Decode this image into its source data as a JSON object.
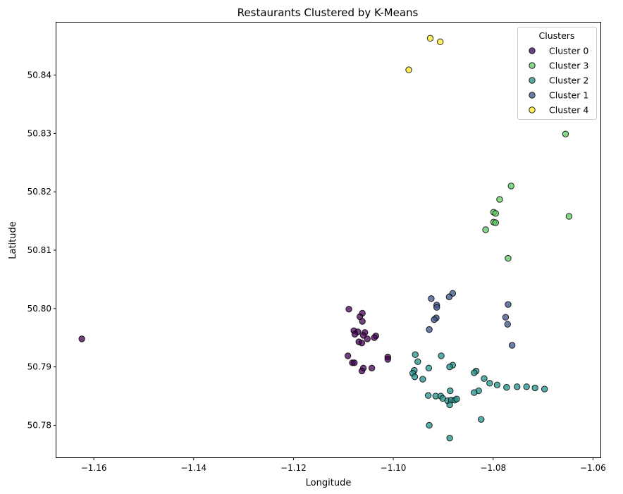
{
  "chart_data": {
    "type": "scatter",
    "title": "Restaurants Clustered by K-Means",
    "xlabel": "Longitude",
    "ylabel": "Latitude",
    "xlim": [
      -1.1675,
      -1.0585
    ],
    "ylim": [
      50.7745,
      50.849
    ],
    "xticks": [
      -1.16,
      -1.14,
      -1.12,
      -1.1,
      -1.08,
      -1.06
    ],
    "xtick_labels": [
      "−1.16",
      "−1.14",
      "−1.12",
      "−1.10",
      "−1.08",
      "−1.06"
    ],
    "yticks": [
      50.78,
      50.79,
      50.8,
      50.81,
      50.82,
      50.83,
      50.84
    ],
    "ytick_labels": [
      "50.78",
      "50.79",
      "50.80",
      "50.81",
      "50.82",
      "50.83",
      "50.84"
    ],
    "grid": false,
    "legend": {
      "title": "Clusters",
      "placement": "top-right"
    },
    "series": [
      {
        "name": "Cluster 0",
        "color": "#440154",
        "points": [
          [
            -1.1624,
            50.7948
          ],
          [
            -1.1089,
            50.7999
          ],
          [
            -1.1062,
            50.7992
          ],
          [
            -1.1067,
            50.7986
          ],
          [
            -1.1062,
            50.7978
          ],
          [
            -1.1079,
            50.7962
          ],
          [
            -1.1071,
            50.796
          ],
          [
            -1.1077,
            50.7956
          ],
          [
            -1.1057,
            50.7959
          ],
          [
            -1.106,
            50.7954
          ],
          [
            -1.1035,
            50.7953
          ],
          [
            -1.1038,
            50.795
          ],
          [
            -1.1052,
            50.7948
          ],
          [
            -1.1069,
            50.7943
          ],
          [
            -1.1063,
            50.7941
          ],
          [
            -1.1091,
            50.7919
          ],
          [
            -1.1011,
            50.7917
          ],
          [
            -1.1011,
            50.7913
          ],
          [
            -1.1082,
            50.7907
          ],
          [
            -1.1078,
            50.7907
          ],
          [
            -1.106,
            50.7898
          ],
          [
            -1.1043,
            50.7898
          ],
          [
            -1.1063,
            50.7893
          ]
        ]
      },
      {
        "name": "Cluster 3",
        "color": "#5ec962",
        "points": [
          [
            -1.0655,
            50.8299
          ],
          [
            -1.0764,
            50.821
          ],
          [
            -1.0787,
            50.8187
          ],
          [
            -1.0799,
            50.8165
          ],
          [
            -1.0795,
            50.8163
          ],
          [
            -1.0799,
            50.8148
          ],
          [
            -1.0795,
            50.8147
          ],
          [
            -1.0815,
            50.8135
          ],
          [
            -1.0648,
            50.8158
          ],
          [
            -1.077,
            50.8086
          ]
        ]
      },
      {
        "name": "Cluster 2",
        "color": "#21918c",
        "points": [
          [
            -1.0956,
            50.7921
          ],
          [
            -1.0904,
            50.7919
          ],
          [
            -1.0951,
            50.7909
          ],
          [
            -1.0881,
            50.7903
          ],
          [
            -1.0887,
            50.79
          ],
          [
            -1.0929,
            50.7898
          ],
          [
            -1.0834,
            50.7893
          ],
          [
            -1.0838,
            50.789
          ],
          [
            -1.0958,
            50.7894
          ],
          [
            -1.0961,
            50.7889
          ],
          [
            -1.0957,
            50.7883
          ],
          [
            -1.0941,
            50.7879
          ],
          [
            -1.0818,
            50.788
          ],
          [
            -1.0807,
            50.7872
          ],
          [
            -1.0792,
            50.7869
          ],
          [
            -1.0773,
            50.7865
          ],
          [
            -1.0752,
            50.7866
          ],
          [
            -1.0733,
            50.7866
          ],
          [
            -1.0716,
            50.7864
          ],
          [
            -1.0697,
            50.7862
          ],
          [
            -1.0829,
            50.7859
          ],
          [
            -1.0838,
            50.7856
          ],
          [
            -1.0886,
            50.7859
          ],
          [
            -1.093,
            50.7851
          ],
          [
            -1.0915,
            50.785
          ],
          [
            -1.0905,
            50.785
          ],
          [
            -1.0901,
            50.7846
          ],
          [
            -1.0891,
            50.7842
          ],
          [
            -1.0884,
            50.7843
          ],
          [
            -1.0877,
            50.7843
          ],
          [
            -1.0873,
            50.7845
          ],
          [
            -1.0887,
            50.7835
          ],
          [
            -1.0824,
            50.781
          ],
          [
            -1.0928,
            50.78
          ],
          [
            -1.0887,
            50.7778
          ]
        ]
      },
      {
        "name": "Cluster 1",
        "color": "#3b528b",
        "points": [
          [
            -1.0881,
            50.8026
          ],
          [
            -1.0888,
            50.802
          ],
          [
            -1.0924,
            50.8017
          ],
          [
            -1.0913,
            50.8006
          ],
          [
            -1.0913,
            50.8002
          ],
          [
            -1.077,
            50.8007
          ],
          [
            -1.0914,
            50.7984
          ],
          [
            -1.0918,
            50.7981
          ],
          [
            -1.0775,
            50.7985
          ],
          [
            -1.0771,
            50.7973
          ],
          [
            -1.0928,
            50.7964
          ],
          [
            -1.0762,
            50.7937
          ]
        ]
      },
      {
        "name": "Cluster 4",
        "color": "#fde725",
        "points": [
          [
            -1.0926,
            50.8463
          ],
          [
            -1.0906,
            50.8457
          ],
          [
            -1.0969,
            50.8409
          ]
        ]
      }
    ]
  }
}
